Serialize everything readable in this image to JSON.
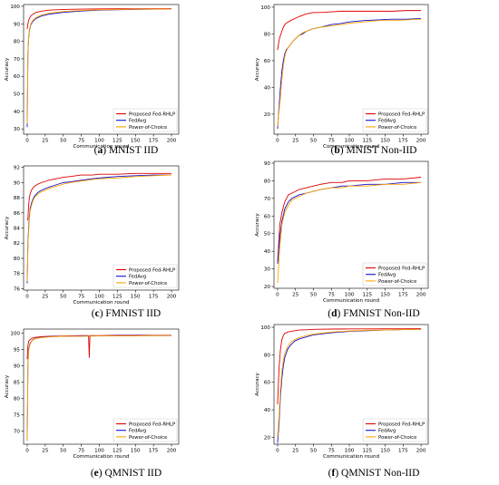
{
  "figure": {
    "colors": {
      "proposed": "#e00000",
      "fedavg": "#1010d0",
      "poc": "#ffa500"
    }
  },
  "chart_data": [
    {
      "type": "line",
      "caption_letter": "a",
      "caption_text": "MNIST IID",
      "xlabel": "Communication round",
      "ylabel": "Accuracy",
      "xlim": [
        -5,
        210
      ],
      "ylim": [
        27,
        101
      ],
      "xticks": [
        0,
        25,
        50,
        75,
        100,
        125,
        150,
        175,
        200
      ],
      "yticks": [
        30,
        40,
        50,
        60,
        70,
        80,
        90,
        100
      ],
      "legend_position": "lower-right",
      "series": [
        {
          "name": "Proposed Fed-RHLP",
          "color": "#e00000",
          "x": [
            0,
            1,
            2,
            3,
            5,
            8,
            12,
            20,
            30,
            50,
            75,
            100,
            150,
            200
          ],
          "y": [
            87,
            90,
            92,
            93,
            94.5,
            95.5,
            96.5,
            97.2,
            97.8,
            98.2,
            98.4,
            98.5,
            98.6,
            98.7
          ]
        },
        {
          "name": "FedAvg",
          "color": "#1010d0",
          "x": [
            0,
            1,
            2,
            3,
            5,
            8,
            12,
            20,
            30,
            50,
            75,
            100,
            150,
            200
          ],
          "y": [
            31,
            73,
            82,
            86,
            89.5,
            91.5,
            93,
            94.5,
            95.5,
            96.5,
            97.3,
            97.8,
            98.2,
            98.5
          ]
        },
        {
          "name": "Power-of-Choice",
          "color": "#ffa500",
          "x": [
            0,
            1,
            2,
            3,
            5,
            8,
            12,
            20,
            30,
            50,
            75,
            100,
            150,
            200
          ],
          "y": [
            33,
            74,
            83,
            86.5,
            90,
            92,
            93.5,
            95,
            96,
            97,
            97.6,
            98,
            98.3,
            98.5
          ]
        }
      ]
    },
    {
      "type": "line",
      "caption_letter": "b",
      "caption_text": "MNIST Non-IID",
      "xlabel": "Communication round",
      "ylabel": "Accuracy",
      "xlim": [
        -5,
        210
      ],
      "ylim": [
        5,
        102
      ],
      "xticks": [
        0,
        25,
        50,
        75,
        100,
        125,
        150,
        175,
        200
      ],
      "yticks": [
        20,
        40,
        60,
        80,
        100
      ],
      "legend_position": "lower-right",
      "series": [
        {
          "name": "Proposed Fed-RHLP",
          "color": "#e00000",
          "x": [
            0,
            2,
            4,
            6,
            8,
            10,
            12,
            15,
            18,
            22,
            26,
            30,
            35,
            40,
            50,
            60,
            75,
            90,
            100,
            120,
            140,
            160,
            180,
            200
          ],
          "y": [
            68,
            75,
            79,
            82,
            85,
            87,
            88,
            89,
            90,
            91,
            92,
            93,
            94,
            95,
            96,
            96,
            96.5,
            97,
            97,
            97,
            97,
            97,
            97.5,
            97.5
          ]
        },
        {
          "name": "FedAvg",
          "color": "#1010d0",
          "x": [
            0,
            2,
            4,
            6,
            8,
            10,
            12,
            15,
            18,
            22,
            26,
            30,
            35,
            40,
            50,
            60,
            75,
            90,
            100,
            120,
            140,
            160,
            180,
            200
          ],
          "y": [
            9,
            25,
            40,
            52,
            60,
            65,
            68,
            70,
            72,
            75,
            77,
            79,
            80,
            82,
            84,
            85,
            87,
            88,
            89,
            90,
            90.5,
            91,
            91,
            91.5
          ]
        },
        {
          "name": "Power-of-Choice",
          "color": "#ffa500",
          "x": [
            0,
            2,
            4,
            6,
            8,
            10,
            12,
            15,
            18,
            22,
            26,
            30,
            35,
            40,
            50,
            60,
            75,
            90,
            100,
            120,
            140,
            160,
            180,
            200
          ],
          "y": [
            11,
            22,
            33,
            46,
            56,
            63,
            67,
            70,
            72,
            75,
            77,
            79,
            81,
            82,
            84,
            85,
            86,
            87,
            88,
            89,
            90,
            90,
            90.5,
            91
          ]
        }
      ]
    },
    {
      "type": "line",
      "caption_letter": "c",
      "caption_text": "FMNIST IID",
      "xlabel": "Communication round",
      "ylabel": "Accuracy",
      "xlim": [
        -5,
        210
      ],
      "ylim": [
        75.8,
        92.2
      ],
      "xticks": [
        0,
        25,
        50,
        75,
        100,
        125,
        150,
        175,
        200
      ],
      "yticks": [
        76,
        78,
        80,
        82,
        84,
        86,
        88,
        90,
        92
      ],
      "legend_position": "lower-right",
      "series": [
        {
          "name": "Proposed Fed-RHLP",
          "color": "#e00000",
          "x": [
            0,
            1,
            2,
            3,
            4,
            6,
            8,
            10,
            15,
            20,
            30,
            40,
            50,
            60,
            75,
            90,
            100,
            125,
            150,
            175,
            200
          ],
          "y": [
            85,
            85.2,
            87,
            88,
            88.5,
            89,
            89.3,
            89.5,
            89.8,
            90,
            90.3,
            90.5,
            90.7,
            90.8,
            91,
            91,
            91.1,
            91.1,
            91.2,
            91.2,
            91.2
          ]
        },
        {
          "name": "FedAvg",
          "color": "#1010d0",
          "x": [
            0,
            1,
            2,
            3,
            4,
            6,
            8,
            10,
            15,
            20,
            30,
            40,
            50,
            60,
            75,
            90,
            100,
            125,
            150,
            175,
            200
          ],
          "y": [
            76.7,
            82,
            84,
            85.5,
            86.5,
            87.3,
            87.8,
            88.2,
            88.7,
            89,
            89.4,
            89.7,
            90,
            90.1,
            90.3,
            90.5,
            90.6,
            90.8,
            90.9,
            91,
            91
          ]
        },
        {
          "name": "Power-of-Choice",
          "color": "#ffa500",
          "x": [
            0,
            1,
            2,
            3,
            4,
            6,
            8,
            10,
            15,
            20,
            30,
            40,
            50,
            60,
            75,
            90,
            100,
            125,
            150,
            175,
            200
          ],
          "y": [
            77,
            81.5,
            83.5,
            85,
            86.2,
            87,
            87.6,
            88,
            88.5,
            88.8,
            89.2,
            89.5,
            89.8,
            90,
            90.2,
            90.4,
            90.5,
            90.6,
            90.8,
            90.9,
            91
          ]
        }
      ]
    },
    {
      "type": "line",
      "caption_letter": "d",
      "caption_text": "FMNIST Non-IID",
      "xlabel": "Communication round",
      "ylabel": "Accuracy",
      "xlim": [
        -5,
        210
      ],
      "ylim": [
        19,
        91
      ],
      "xticks": [
        0,
        25,
        50,
        75,
        100,
        125,
        150,
        175,
        200
      ],
      "yticks": [
        20,
        30,
        40,
        50,
        60,
        70,
        80,
        90
      ],
      "legend_position": "lower-right",
      "series": [
        {
          "name": "Proposed Fed-RHLP",
          "color": "#e00000",
          "x": [
            0,
            3,
            6,
            10,
            15,
            20,
            30,
            40,
            50,
            60,
            75,
            90,
            100,
            125,
            150,
            175,
            200
          ],
          "y": [
            33,
            55,
            62,
            68,
            72,
            73,
            75,
            76,
            77,
            78,
            79,
            79,
            80,
            80,
            81,
            81,
            82
          ]
        },
        {
          "name": "FedAvg",
          "color": "#1010d0",
          "x": [
            0,
            3,
            6,
            10,
            15,
            20,
            30,
            40,
            50,
            60,
            75,
            90,
            100,
            125,
            150,
            175,
            200
          ],
          "y": [
            33,
            48,
            57,
            64,
            68,
            70,
            72,
            73,
            74,
            75,
            76,
            77,
            77,
            78,
            78,
            79,
            79
          ]
        },
        {
          "name": "Power-of-Choice",
          "color": "#ffa500",
          "x": [
            0,
            3,
            6,
            10,
            15,
            20,
            30,
            40,
            50,
            60,
            75,
            90,
            100,
            125,
            150,
            175,
            200
          ],
          "y": [
            22,
            42,
            55,
            62,
            66,
            69,
            71,
            73,
            74,
            75,
            76,
            76,
            77,
            77,
            78,
            78,
            79
          ]
        }
      ]
    },
    {
      "type": "line",
      "caption_letter": "e",
      "caption_text": "QMNIST IID",
      "xlabel": "Communication round",
      "ylabel": "Accuracy",
      "xlim": [
        -5,
        210
      ],
      "ylim": [
        66,
        101.2
      ],
      "xticks": [
        0,
        25,
        50,
        75,
        100,
        125,
        150,
        175,
        200
      ],
      "yticks": [
        70,
        75,
        80,
        85,
        90,
        95,
        100
      ],
      "legend_position": "lower-right",
      "series": [
        {
          "name": "Proposed Fed-RHLP",
          "color": "#e00000",
          "x": [
            0,
            1,
            2,
            4,
            6,
            8,
            12,
            20,
            30,
            50,
            75,
            85,
            86,
            87,
            88,
            100,
            125,
            150,
            175,
            200
          ],
          "y": [
            92,
            96,
            97.5,
            98,
            98.3,
            98.5,
            98.7,
            98.9,
            99,
            99.1,
            99.2,
            99.2,
            92.5,
            99.2,
            99.2,
            99.2,
            99.3,
            99.3,
            99.3,
            99.3
          ]
        },
        {
          "name": "FedAvg",
          "color": "#1010d0",
          "x": [
            0,
            1,
            2,
            4,
            6,
            8,
            12,
            20,
            30,
            50,
            75,
            100,
            125,
            150,
            175,
            200
          ],
          "y": [
            67,
            90,
            95,
            96.8,
            97.5,
            98,
            98.4,
            98.7,
            98.9,
            99,
            99.1,
            99.1,
            99.2,
            99.2,
            99.2,
            99.2
          ]
        },
        {
          "name": "Power-of-Choice",
          "color": "#ffa500",
          "x": [
            0,
            1,
            2,
            4,
            6,
            8,
            12,
            20,
            30,
            50,
            75,
            100,
            125,
            150,
            175,
            200
          ],
          "y": [
            67,
            89,
            94.5,
            96.5,
            97.4,
            97.9,
            98.3,
            98.6,
            98.8,
            99,
            99,
            99.1,
            99.1,
            99.1,
            99.2,
            99.2
          ]
        }
      ]
    },
    {
      "type": "line",
      "caption_letter": "f",
      "caption_text": "QMNIST Non-IID",
      "xlabel": "Communication round",
      "ylabel": "Accuracy",
      "xlim": [
        -5,
        210
      ],
      "ylim": [
        15,
        102
      ],
      "xticks": [
        0,
        25,
        50,
        75,
        100,
        125,
        150,
        175,
        200
      ],
      "yticks": [
        20,
        40,
        60,
        80,
        100
      ],
      "legend_position": "lower-right",
      "series": [
        {
          "name": "Proposed Fed-RHLP",
          "color": "#e00000",
          "x": [
            0,
            2,
            4,
            6,
            8,
            10,
            14,
            18,
            24,
            30,
            40,
            50,
            75,
            100,
            125,
            150,
            175,
            200
          ],
          "y": [
            44,
            70,
            84,
            91,
            94,
            95.5,
            96.5,
            97,
            97.5,
            98,
            98.2,
            98.5,
            98.7,
            98.8,
            98.8,
            98.9,
            98.9,
            99
          ]
        },
        {
          "name": "FedAvg",
          "color": "#1010d0",
          "x": [
            0,
            2,
            4,
            6,
            8,
            10,
            14,
            18,
            24,
            30,
            40,
            50,
            75,
            100,
            125,
            150,
            175,
            200
          ],
          "y": [
            16,
            30,
            50,
            63,
            72,
            78,
            84,
            87,
            90,
            91.5,
            93,
            94.5,
            96,
            97,
            97.5,
            98,
            98.3,
            98.5
          ]
        },
        {
          "name": "Power-of-Choice",
          "color": "#ffa500",
          "x": [
            0,
            2,
            4,
            6,
            8,
            10,
            14,
            18,
            24,
            30,
            40,
            50,
            75,
            100,
            125,
            150,
            175,
            200
          ],
          "y": [
            20,
            35,
            55,
            68,
            76,
            81,
            86,
            89,
            91,
            92.5,
            94,
            95,
            96.5,
            97.3,
            97.8,
            98,
            98.3,
            98.5
          ]
        }
      ]
    }
  ]
}
